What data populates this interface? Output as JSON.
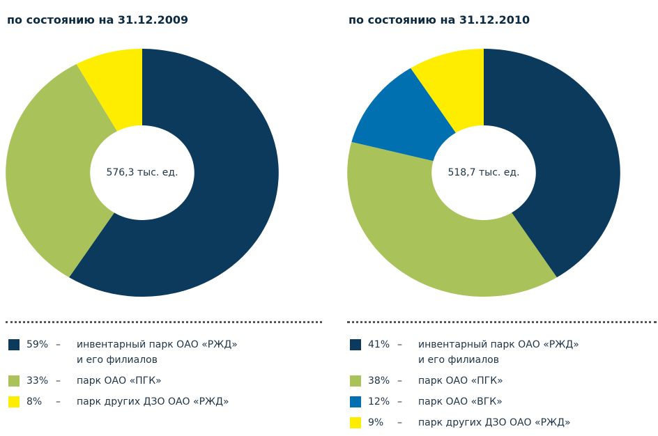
{
  "chart_data": [
    {
      "type": "pie",
      "title": "по состоянию на 31.12.2009",
      "center_label": "576,3 тыс. ед.",
      "separator": "–",
      "categories": [
        "инвентарный парк ОАО «РЖД»\nи его филиалов",
        "парк ОАО «ПГК»",
        "парк других ДЗО ОАО «РЖД»"
      ],
      "values": [
        59,
        33,
        8
      ],
      "value_labels": [
        "59%",
        "33%",
        "8%"
      ],
      "colors": [
        "#0b3a5c",
        "#a9c25a",
        "#ffed00"
      ]
    },
    {
      "type": "pie",
      "title": "по состоянию на 31.12.2010",
      "center_label": "518,7 тыс. ед.",
      "separator": "–",
      "categories": [
        "инвентарный парк ОАО «РЖД»\nи его филиалов",
        "парк ОАО «ПГК»",
        "парк ОАО «ВГК»",
        "парк других ДЗО ОАО «РЖД»"
      ],
      "values": [
        41,
        38,
        12,
        9
      ],
      "value_labels": [
        "41%",
        "38%",
        "12%",
        "9%"
      ],
      "colors": [
        "#0b3a5c",
        "#a9c25a",
        "#0070b0",
        "#ffed00"
      ]
    }
  ]
}
